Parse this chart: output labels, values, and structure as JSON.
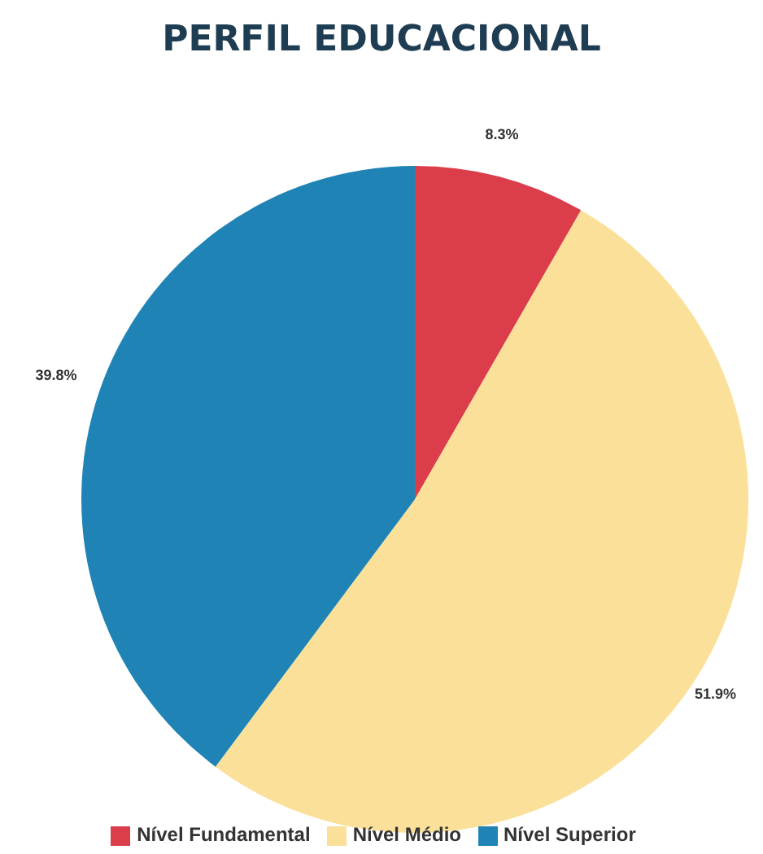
{
  "chart_data": {
    "type": "pie",
    "title": "PERFIL EDUCACIONAL",
    "categories": [
      "Nível Fundamental",
      "Nível Médio",
      "Nível Superior"
    ],
    "values": [
      8.3,
      51.9,
      39.8
    ],
    "colors": [
      "#dc3d4b",
      "#fbe09a",
      "#1f84b5"
    ],
    "value_labels": [
      "8.3%",
      "51.9%",
      "39.8%"
    ],
    "legend": "bottom"
  }
}
